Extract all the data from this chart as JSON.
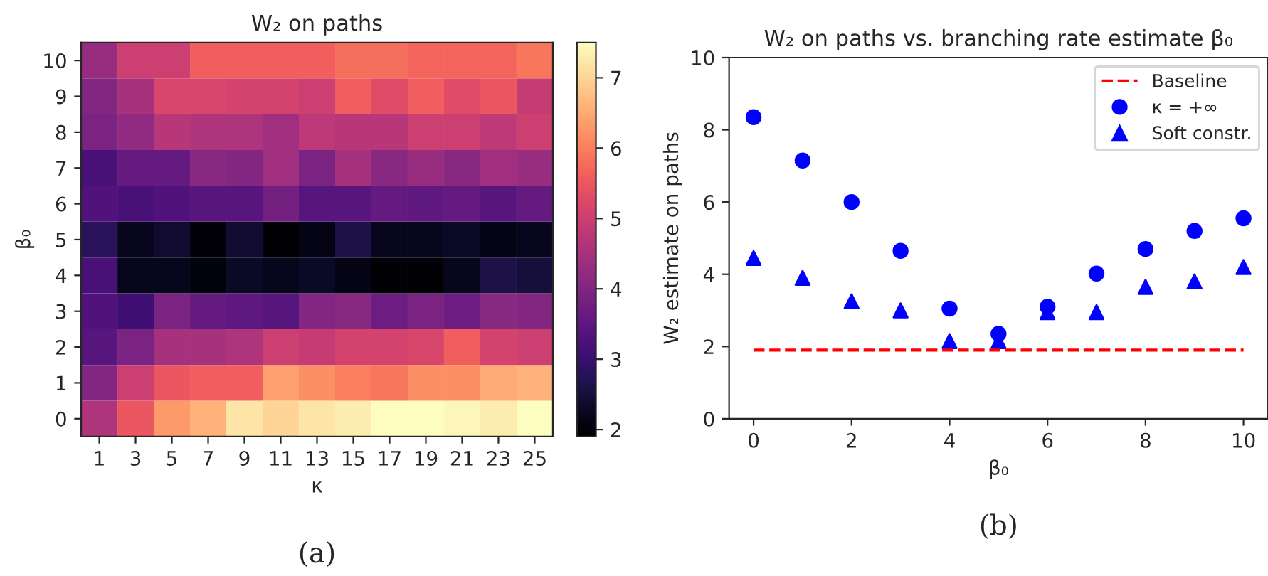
{
  "chart_data": [
    {
      "type": "heatmap",
      "title": "W₂ on paths",
      "xlabel": "κ",
      "ylabel": "β₀",
      "categories": [
        "1",
        "3",
        "5",
        "7",
        "9",
        "11",
        "13",
        "15",
        "17",
        "19",
        "21",
        "23",
        "25"
      ],
      "y_categories": [
        "10",
        "9",
        "8",
        "7",
        "6",
        "5",
        "4",
        "3",
        "2",
        "1",
        "0"
      ],
      "cells": [
        [
          4.3,
          5.0,
          5.0,
          5.6,
          5.6,
          5.6,
          5.6,
          5.8,
          5.8,
          5.7,
          5.7,
          5.7,
          5.9
        ],
        [
          4.0,
          4.5,
          5.2,
          5.2,
          5.1,
          5.1,
          5.0,
          5.6,
          5.3,
          5.6,
          5.3,
          5.5,
          4.9
        ],
        [
          3.9,
          4.2,
          4.7,
          4.6,
          4.6,
          4.4,
          4.8,
          4.7,
          4.7,
          5.0,
          5.0,
          4.8,
          5.0
        ],
        [
          3.2,
          3.6,
          3.6,
          4.1,
          4.0,
          4.4,
          3.9,
          4.5,
          4.1,
          4.3,
          4.1,
          4.4,
          4.3
        ],
        [
          3.3,
          3.2,
          3.3,
          3.4,
          3.4,
          3.8,
          3.4,
          3.4,
          3.6,
          3.5,
          3.6,
          3.4,
          3.6
        ],
        [
          2.8,
          2.2,
          2.4,
          2.0,
          2.4,
          1.95,
          2.1,
          2.6,
          2.2,
          2.2,
          2.3,
          2.1,
          2.2
        ],
        [
          3.2,
          2.2,
          2.2,
          2.05,
          2.3,
          2.2,
          2.3,
          2.1,
          1.95,
          1.95,
          2.2,
          2.6,
          2.5
        ],
        [
          3.3,
          3.1,
          3.9,
          3.6,
          3.5,
          3.4,
          4.0,
          4.1,
          3.7,
          3.9,
          3.7,
          4.1,
          4.0
        ],
        [
          3.4,
          3.9,
          4.5,
          4.5,
          4.6,
          5.0,
          4.9,
          5.1,
          5.1,
          5.2,
          5.6,
          5.1,
          5.0
        ],
        [
          4.0,
          5.0,
          5.5,
          5.6,
          5.6,
          6.4,
          6.2,
          6.0,
          5.9,
          6.2,
          6.2,
          6.5,
          6.6
        ],
        [
          4.6,
          5.5,
          6.3,
          6.6,
          7.2,
          7.0,
          7.2,
          7.3,
          7.5,
          7.5,
          7.4,
          7.3,
          7.5
        ]
      ],
      "clim": [
        1.9,
        7.5
      ],
      "cticks": [
        2,
        3,
        4,
        5,
        6,
        7
      ],
      "annotations": [
        "(a)"
      ]
    },
    {
      "type": "scatter",
      "title": "W₂ on paths vs. branching rate estimate β₀",
      "xlabel": "β₀",
      "ylabel": "W₂ estimate on paths",
      "x": [
        0,
        1,
        2,
        3,
        4,
        5,
        6,
        7,
        8,
        9,
        10
      ],
      "series": [
        {
          "name": "Baseline",
          "type": "line",
          "x": [
            0,
            10
          ],
          "values": [
            1.9,
            1.9
          ],
          "color": "#ff0000",
          "line_style": "dashed",
          "marker": "none"
        },
        {
          "name": "κ = +∞",
          "color": "#0000ff",
          "marker": "circle",
          "values": [
            8.35,
            7.15,
            6.0,
            4.65,
            3.05,
            2.35,
            3.1,
            4.02,
            4.7,
            5.2,
            5.55
          ]
        },
        {
          "name": "Soft constr.",
          "color": "#0000ff",
          "marker": "triangle",
          "values": [
            4.45,
            3.9,
            3.25,
            3.0,
            2.15,
            2.15,
            2.95,
            2.95,
            3.65,
            3.8,
            4.2
          ]
        }
      ],
      "xlim": [
        -0.5,
        10.5
      ],
      "ylim": [
        0,
        10
      ],
      "xticks": [
        0,
        2,
        4,
        6,
        8,
        10
      ],
      "yticks": [
        0,
        2,
        4,
        6,
        8,
        10
      ],
      "grid": false,
      "legend": "top right",
      "annotations": [
        "(b)"
      ]
    }
  ]
}
